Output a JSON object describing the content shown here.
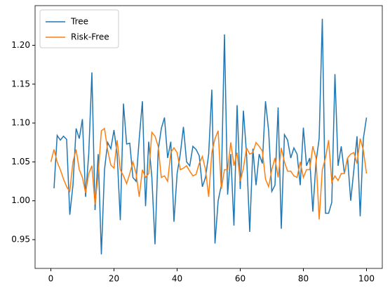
{
  "chart_data": {
    "type": "line",
    "x": [
      0,
      1,
      2,
      3,
      4,
      5,
      6,
      7,
      8,
      9,
      10,
      11,
      12,
      13,
      14,
      15,
      16,
      17,
      18,
      19,
      20,
      21,
      22,
      23,
      24,
      25,
      26,
      27,
      28,
      29,
      30,
      31,
      32,
      33,
      34,
      35,
      36,
      37,
      38,
      39,
      40,
      41,
      42,
      43,
      44,
      45,
      46,
      47,
      48,
      49,
      50,
      51,
      52,
      53,
      54,
      55,
      56,
      57,
      58,
      59,
      60,
      61,
      62,
      63,
      64,
      65,
      66,
      67,
      68,
      69,
      70,
      71,
      72,
      73,
      74,
      75,
      76,
      77,
      78,
      79,
      80,
      81,
      82,
      83,
      84,
      85,
      86,
      87,
      88,
      89,
      90,
      91,
      92,
      93,
      94,
      95,
      96,
      97,
      98,
      99,
      100
    ],
    "series": [
      {
        "name": "Tree",
        "color": "#1f77b4",
        "values": [
          null,
          1.016,
          1.084,
          1.078,
          1.083,
          1.079,
          0.982,
          1.02,
          1.093,
          1.08,
          1.105,
          1.005,
          1.06,
          1.165,
          0.988,
          1.06,
          0.931,
          1.04,
          1.075,
          1.067,
          1.091,
          1.06,
          0.975,
          1.125,
          1.073,
          1.074,
          1.03,
          1.025,
          1.08,
          1.128,
          0.993,
          1.076,
          1.03,
          0.944,
          1.065,
          1.093,
          1.107,
          1.055,
          1.076,
          0.973,
          1.035,
          1.06,
          1.095,
          1.05,
          1.045,
          1.07,
          1.066,
          1.058,
          1.018,
          1.03,
          1.06,
          1.143,
          0.945,
          1.0,
          1.02,
          1.214,
          1.008,
          1.06,
          0.968,
          1.123,
          1.015,
          1.116,
          1.06,
          0.96,
          1.067,
          1.02,
          1.06,
          1.048,
          1.128,
          1.09,
          1.012,
          1.02,
          1.12,
          0.964,
          1.085,
          1.078,
          1.055,
          1.068,
          1.06,
          1.02,
          1.094,
          1.045,
          1.055,
          0.986,
          1.05,
          1.08,
          1.234,
          0.984,
          0.984,
          0.998,
          1.163,
          1.045,
          1.07,
          1.035,
          1.055,
          1.0,
          1.04,
          1.083,
          0.98,
          1.08,
          1.107
        ]
      },
      {
        "name": "Risk-Free",
        "color": "#ff7f0e",
        "values": [
          1.05,
          1.066,
          1.05,
          1.04,
          1.028,
          1.018,
          1.012,
          1.05,
          1.066,
          1.04,
          1.03,
          1.01,
          1.035,
          1.045,
          0.995,
          1.035,
          1.09,
          1.093,
          1.065,
          1.046,
          1.042,
          1.078,
          1.04,
          1.032,
          1.022,
          1.035,
          1.05,
          1.035,
          1.005,
          1.04,
          1.03,
          1.035,
          1.088,
          1.083,
          1.07,
          1.03,
          1.032,
          1.025,
          1.062,
          1.068,
          1.062,
          1.04,
          1.042,
          1.045,
          1.038,
          1.032,
          1.034,
          1.048,
          1.057,
          1.04,
          1.005,
          1.062,
          1.08,
          1.09,
          1.015,
          1.04,
          1.04,
          1.075,
          1.045,
          1.062,
          1.025,
          1.042,
          1.068,
          1.06,
          1.062,
          1.075,
          1.07,
          1.064,
          1.028,
          1.018,
          1.04,
          1.055,
          1.03,
          1.068,
          1.05,
          1.038,
          1.038,
          1.032,
          1.03,
          1.05,
          1.03,
          1.04,
          1.04,
          1.07,
          1.055,
          0.976,
          1.04,
          1.055,
          1.078,
          1.024,
          1.032,
          1.026,
          1.035,
          1.035,
          1.055,
          1.06,
          1.062,
          1.048,
          1.08,
          1.065,
          1.035
        ]
      }
    ],
    "xlim": [
      -5,
      105
    ],
    "xticks": [
      0,
      20,
      40,
      60,
      80,
      100
    ],
    "ylim": [
      0.913,
      1.251
    ],
    "yticks": [
      0.95,
      {
        "value": 1,
        "label": "1.00"
      },
      1.05,
      {
        "value": 1.1,
        "label": "1.10"
      },
      1.15,
      {
        "value": 1.2,
        "label": "1.20"
      }
    ],
    "legend": "upper left"
  }
}
